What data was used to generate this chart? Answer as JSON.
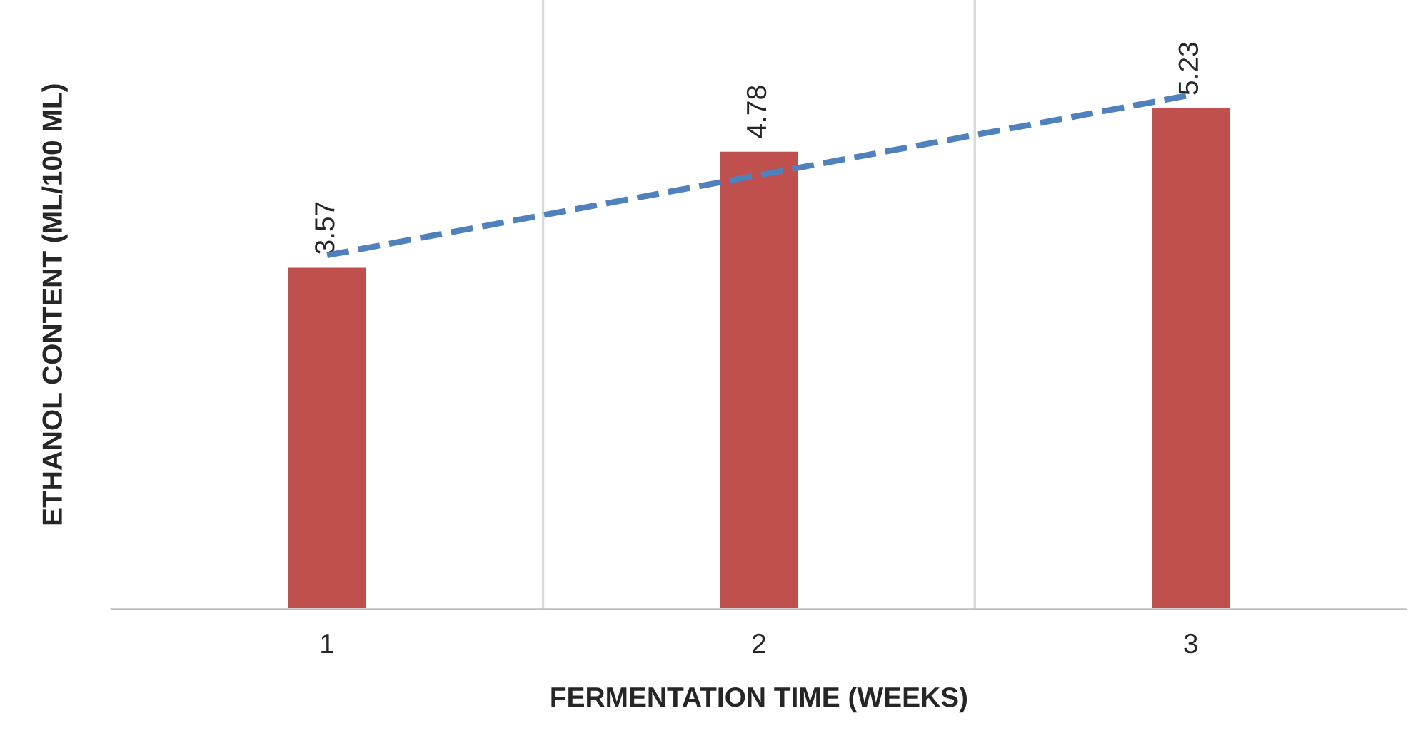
{
  "chart_data": {
    "type": "bar",
    "xlabel": "FERMENTATION TIME (WEEKS)",
    "ylabel": "ETHANOL CONTENT (ML/100 ML)",
    "categories": [
      "1",
      "2",
      "3"
    ],
    "series": [
      {
        "color": "#c0504d",
        "values": [
          3.57,
          4.78,
          5.23
        ],
        "value_labels": [
          "3.57",
          "4.78",
          "5.23"
        ]
      },
      {
        "type": "line",
        "color": "#4f81bd",
        "x": [
          "1",
          "3"
        ],
        "values": [
          3.69,
          5.36
        ],
        "line_style": "dashed",
        "marker": "none"
      }
    ],
    "ylim": [
      0,
      6.35
    ],
    "tick_labels": "x",
    "grid": "x",
    "legend": false
  }
}
